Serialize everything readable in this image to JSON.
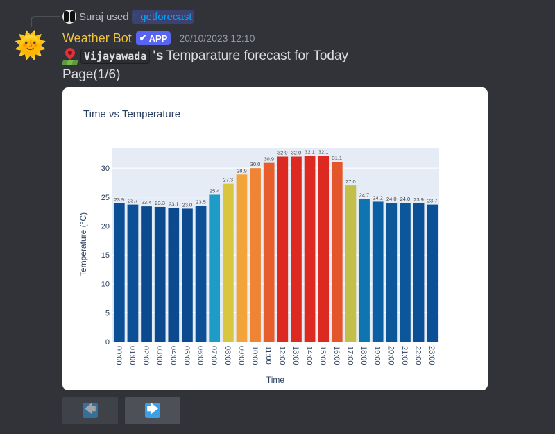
{
  "reply": {
    "user": "Suraj",
    "used": "used",
    "command": "getforecast",
    "command_icon": "slash-command-icon"
  },
  "author": {
    "name": "Weather Bot",
    "badge": "APP",
    "timestamp": "20/10/2023 12:10",
    "avatar_icon": "sun-with-face-icon"
  },
  "message": {
    "location_icon": "round-pushpin-map-icon",
    "city": "Vijayawada",
    "possessive": "'s",
    "text": "Temparature forecast for Today",
    "page": "Page(1/6)"
  },
  "buttons": {
    "prev": {
      "glyph": "🡄",
      "icon": "left-arrow-icon",
      "disabled": true
    },
    "next": {
      "glyph": "🡆",
      "icon": "right-arrow-icon",
      "disabled": false
    }
  },
  "chart_data": {
    "type": "bar",
    "title": "Time vs Temperature",
    "xlabel": "Time",
    "ylabel": "Temperature (°C)",
    "ylim": [
      0,
      33.5
    ],
    "yticks": [
      0,
      5,
      10,
      15,
      20,
      25,
      30
    ],
    "grid": true,
    "categories": [
      "00:00",
      "01:00",
      "02:00",
      "03:00",
      "04:00",
      "05:00",
      "06:00",
      "07:00",
      "08:00",
      "09:00",
      "10:00",
      "11:00",
      "12:00",
      "13:00",
      "14:00",
      "15:00",
      "16:00",
      "17:00",
      "18:00",
      "19:00",
      "20:00",
      "21:00",
      "22:00",
      "23:00"
    ],
    "values": [
      23.9,
      23.7,
      23.4,
      23.3,
      23.1,
      23.0,
      23.5,
      25.4,
      27.3,
      28.9,
      30.0,
      30.9,
      32.0,
      32.0,
      32.1,
      32.1,
      31.1,
      27.0,
      24.7,
      24.2,
      24.0,
      24.0,
      23.9,
      23.7
    ],
    "labels": [
      "23.9",
      "23.7",
      "23.4",
      "23.3",
      "23.1",
      "23.0",
      "23.5",
      "25.4",
      "27.3",
      "28.9",
      "30.0",
      "30.9",
      "32.0",
      "32.0",
      "32.1",
      "32.1",
      "31.1",
      "27.0",
      "24.7",
      "24.2",
      "24.0",
      "24.0",
      "23.9",
      "23.7"
    ],
    "colors": [
      "#0b4f96",
      "#0b4f96",
      "#0b4a8f",
      "#0b4a8f",
      "#0b4a8f",
      "#0b4a8f",
      "#0b4f96",
      "#1f9bc8",
      "#d8c640",
      "#f2a33a",
      "#ef8534",
      "#e85d2c",
      "#dc2a20",
      "#dc2a20",
      "#dc2a20",
      "#dc2a20",
      "#e5552a",
      "#c2c04a",
      "#0f75b0",
      "#0b5fa3",
      "#0b5799",
      "#0b5799",
      "#0b4f96",
      "#0b4f96"
    ],
    "plot_bg": "#e5ecf6"
  }
}
